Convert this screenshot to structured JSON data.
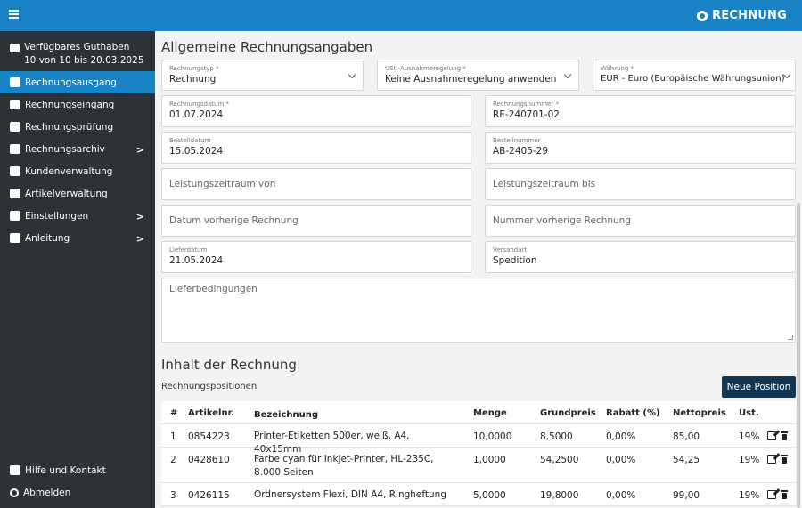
{
  "header": {
    "brand": "RECHNUNG",
    "menu_icon": "hamburger-icon",
    "brand_icon": "logo-icon",
    "color": "#1a83c6"
  },
  "sidebar": {
    "credit_line1": "Verfügbares Guthaben",
    "credit_line2": "10 von 10 bis 20.03.2025",
    "items": [
      {
        "label": "Rechnungsausgang",
        "icon": "invoice-out-icon"
      },
      {
        "label": "Rechnungseingang",
        "icon": "invoice-in-icon"
      },
      {
        "label": "Rechnungsprüfung",
        "icon": "checklist-icon"
      },
      {
        "label": "Rechnungsarchiv",
        "icon": "archive-icon"
      },
      {
        "label": "Kundenverwaltung",
        "icon": "users-icon"
      },
      {
        "label": "Artikelverwaltung",
        "icon": "tags-icon"
      },
      {
        "label": "Einstellungen",
        "icon": "wrench-icon"
      },
      {
        "label": "Anleitung",
        "icon": "book-icon"
      }
    ],
    "bottom": [
      {
        "label": "Hilfe und Kontakt",
        "icon": "chat-icon"
      },
      {
        "label": "Abmelden",
        "icon": "power-icon"
      }
    ]
  },
  "main": {
    "title": "Allgemeine Rechnungsangaben",
    "fields": {
      "typ": {
        "label": "Rechnungstyp *",
        "value": "Rechnung"
      },
      "ust": {
        "label": "USt.-Ausnahmeregelung *",
        "value": "Keine Ausnahmeregelung anwenden"
      },
      "waehrung": {
        "label": "Währung *",
        "value": "EUR - Euro (Europäische Währungsunion)"
      },
      "datum": {
        "label": "Rechnungsdatum *",
        "value": "01.07.2024"
      },
      "nummer": {
        "label": "Rechnungsnummer *",
        "value": "RE-240701-02"
      },
      "bestelldatum": {
        "label": "Bestelldatum",
        "value": "15.05.2024"
      },
      "bestellnummer": {
        "label": "Bestellnummer",
        "value": "AB-2405-29"
      },
      "lz_von": {
        "placeholder": "Leistungszeitraum von"
      },
      "lz_bis": {
        "placeholder": "Leistungszeitraum bis"
      },
      "vorh_datum": {
        "placeholder": "Datum vorherige Rechnung"
      },
      "vorh_nummer": {
        "placeholder": "Nummer vorherige Rechnung"
      },
      "lieferdatum": {
        "label": "Lieferdatum",
        "value": "21.05.2024"
      },
      "versandart": {
        "label": "Versandart",
        "value": "Spedition"
      },
      "lieferbed": {
        "placeholder": "Lieferbedingungen"
      }
    },
    "content_title": "Inhalt der Rechnung",
    "positions_label": "Rechnungspositionen",
    "new_button": "Neue Position",
    "table": {
      "headers": [
        "#",
        "Artikelnr.",
        "Bezeichnung",
        "Menge",
        "Grundpreis",
        "Rabatt (%)",
        "Nettopreis",
        "Ust."
      ],
      "rows": [
        [
          "1",
          "0854223",
          "Printer-Etiketten 500er, weiß, A4, 40x15mm",
          "10,0000",
          "8,5000",
          "0,00%",
          "85,00",
          "19%"
        ],
        [
          "2",
          "0428610",
          "Farbe cyan für Inkjet-Printer, HL-235C, 8.000 Seiten",
          "1,0000",
          "54,2500",
          "0,00%",
          "54,25",
          "19%"
        ],
        [
          "3",
          "0426115",
          "Ordnersystem Flexi, DIN A4, Ringheftung",
          "5,0000",
          "19,8000",
          "0,00%",
          "99,00",
          "19%"
        ]
      ]
    }
  }
}
